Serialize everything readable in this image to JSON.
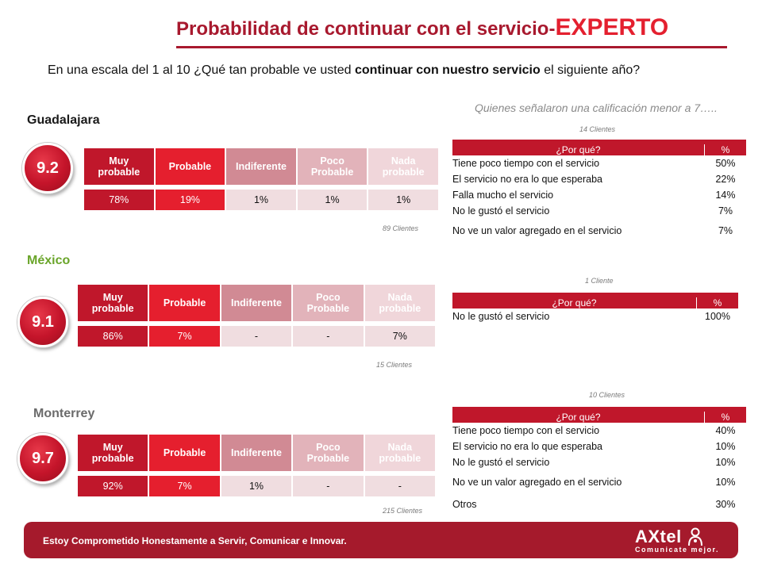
{
  "header": {
    "title_main": "Probabilidad de continuar con el servicio-",
    "title_emph": "EXPERTO",
    "question_pre": "En una escala del 1 al 10 ¿Qué tan probable ve usted ",
    "question_bold": "continuar con nuestro servicio",
    "question_post": " el siguiente año?",
    "right_note": "Quienes señalaron una calificación menor a 7….."
  },
  "scale_headers": [
    "Muy probable",
    "Probable",
    "Indiferente",
    "Poco Probable",
    "Nada probable"
  ],
  "reasons_headers": {
    "question": "¿Por qué?",
    "percent": "%"
  },
  "regions": [
    {
      "name": "Guadalajara",
      "score": "9.2",
      "values": [
        "78%",
        "19%",
        "1%",
        "1%",
        "1%"
      ],
      "clients_note": "89 Clientes",
      "reasons_note": "14 Clientes",
      "reasons": [
        {
          "reason": "Tiene poco tiempo con el servicio",
          "pct": "50%"
        },
        {
          "reason": "El servicio no era lo que esperaba",
          "pct": "22%"
        },
        {
          "reason": "Falla mucho el servicio",
          "pct": "14%"
        },
        {
          "reason": "No le gustó el servicio",
          "pct": "7%"
        },
        {
          "reason": "No ve un valor agregado en el servicio",
          "pct": "7%"
        }
      ]
    },
    {
      "name": "México",
      "score": "9.1",
      "values": [
        "86%",
        "7%",
        "-",
        "-",
        "7%"
      ],
      "clients_note": "15 Clientes",
      "reasons_note": "1 Cliente",
      "reasons": [
        {
          "reason": "No le gustó el servicio",
          "pct": "100%"
        }
      ]
    },
    {
      "name": "Monterrey",
      "score": "9.7",
      "values": [
        "92%",
        "7%",
        "1%",
        "-",
        "-"
      ],
      "clients_note": "215 Clientes",
      "reasons_note": "10 Clientes",
      "reasons": [
        {
          "reason": "Tiene poco tiempo con el servicio",
          "pct": "40%"
        },
        {
          "reason": "El servicio no era lo que esperaba",
          "pct": "10%"
        },
        {
          "reason": "No le gustó el servicio",
          "pct": "10%"
        },
        {
          "reason": "No ve un valor agregado en el servicio",
          "pct": "10%"
        },
        {
          "reason": "Otros",
          "pct": "30%"
        }
      ]
    }
  ],
  "footer": {
    "slogan": "Estoy Comprometido Honestamente a Servir, Comunicar e Innovar.",
    "brand": "AXtel",
    "tagline": "Comunicate mejor."
  },
  "colors": {
    "primary_red": "#c0172b",
    "bright_red": "#e51f2e",
    "title_red": "#a8192e",
    "footer_red": "#a51a2c",
    "mexico_green": "#6aa52a",
    "monterrey_gray": "#6b6b6b"
  }
}
